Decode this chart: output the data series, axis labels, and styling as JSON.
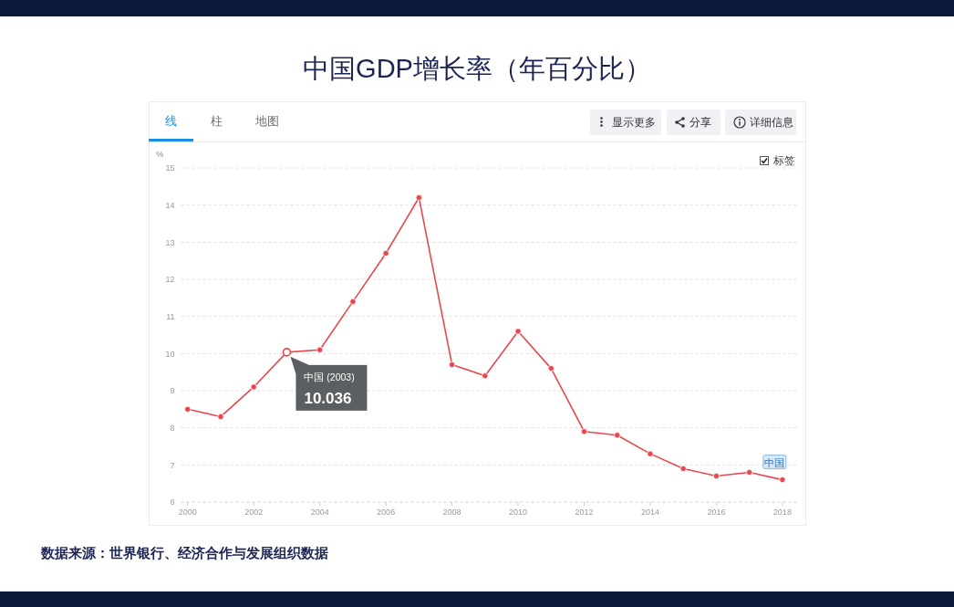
{
  "chart_data": {
    "type": "line",
    "title": "中国GDP增长率（年百分比）",
    "ylabel": "%",
    "x": [
      2000,
      2001,
      2002,
      2003,
      2004,
      2005,
      2006,
      2007,
      2008,
      2009,
      2010,
      2011,
      2012,
      2013,
      2014,
      2015,
      2016,
      2017,
      2018
    ],
    "series": [
      {
        "name": "中国",
        "color": "#e8474f",
        "values": [
          8.5,
          8.3,
          9.1,
          10.036,
          10.1,
          11.4,
          12.7,
          14.2,
          9.7,
          9.4,
          10.6,
          9.6,
          7.9,
          7.8,
          7.3,
          6.9,
          6.7,
          6.8,
          6.6
        ],
        "value_labels": [
          null,
          null,
          null,
          "10.036",
          null,
          null,
          null,
          null,
          null,
          null,
          null,
          null,
          null,
          null,
          null,
          null,
          null,
          null,
          null
        ]
      }
    ],
    "xlim": [
      1999.8,
      2018.5
    ],
    "xticks": [
      2000,
      2002,
      2004,
      2006,
      2008,
      2010,
      2012,
      2014,
      2016,
      2018
    ],
    "ylim": [
      6,
      15
    ],
    "yticks": [
      6,
      7,
      8,
      9,
      10,
      11,
      12,
      13,
      14,
      15
    ],
    "grid": "y",
    "marker": "circle",
    "line_style": "solid",
    "annotations": [
      "线",
      "柱",
      "地图",
      "显示更多",
      "分享",
      "详细信息",
      "标签",
      {
        "text": "中国 (2003)",
        "x": 2003,
        "y": 10.036
      },
      "数据来源：世界银行、经济合作与发展组织数据"
    ]
  }
}
